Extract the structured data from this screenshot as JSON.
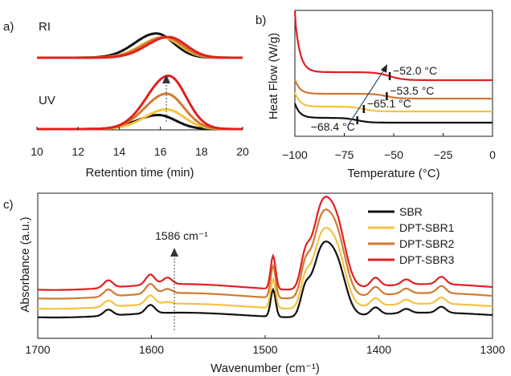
{
  "colors": {
    "SBR": "#111111",
    "DPT-SBR1": "#F5C242",
    "DPT-SBR2": "#D07A30",
    "DPT-SBR3": "#E02020",
    "axis": "#1a1a1a"
  },
  "chart_data": [
    {
      "panel_label": "a)",
      "type": "line",
      "xlabel": "Retention time (min)",
      "ylabel": "",
      "xlim": [
        10,
        20
      ],
      "xticks": [
        "10",
        "12",
        "14",
        "16",
        "18",
        "20"
      ],
      "y_axis_shown": false,
      "inline_labels": [
        "RI",
        "UV"
      ],
      "subplots": [
        {
          "label": "RI",
          "series": [
            {
              "key": "SBR",
              "peak_x": 15.8,
              "height": 0.55,
              "baseline": 0.0
            },
            {
              "key": "DPT-SBR1",
              "peak_x": 16.1,
              "height": 0.46,
              "baseline": 0.0
            },
            {
              "key": "DPT-SBR2",
              "peak_x": 16.2,
              "height": 0.47,
              "baseline": 0.0
            },
            {
              "key": "DPT-SBR3",
              "peak_x": 16.4,
              "height": 0.47,
              "baseline": 0.0
            }
          ]
        },
        {
          "label": "UV",
          "series": [
            {
              "key": "SBR",
              "peak_x": 15.9,
              "height": 0.25,
              "baseline": 0.0
            },
            {
              "key": "DPT-SBR1",
              "peak_x": 16.3,
              "height": 0.35,
              "baseline": 0.0
            },
            {
              "key": "DPT-SBR2",
              "peak_x": 16.3,
              "height": 0.63,
              "baseline": 0.0
            },
            {
              "key": "DPT-SBR3",
              "peak_x": 16.4,
              "height": 0.95,
              "baseline": 0.0
            }
          ]
        }
      ]
    },
    {
      "panel_label": "b)",
      "type": "line",
      "xlabel": "Temperature (°C)",
      "ylabel": "Heat Flow (W/g)",
      "xlim": [
        -100,
        0
      ],
      "xticks": [
        "−100",
        "−75",
        "−50",
        "−25",
        "0"
      ],
      "series": [
        {
          "key": "DPT-SBR3",
          "offset": 3,
          "tg": -52.0,
          "tg_label": "−52.0 °C"
        },
        {
          "key": "DPT-SBR2",
          "offset": 2,
          "tg": -53.5,
          "tg_label": "−53.5 °C"
        },
        {
          "key": "DPT-SBR1",
          "offset": 1,
          "tg": -65.1,
          "tg_label": "−65.1 °C"
        },
        {
          "key": "SBR",
          "offset": 0,
          "tg": -68.4,
          "tg_label": "−68.4 °C"
        }
      ]
    },
    {
      "panel_label": "c)",
      "type": "line",
      "xlabel": "Wavenumber (cm⁻¹)",
      "ylabel": "Absorbance (a.u.)",
      "xlim": [
        1700,
        1300
      ],
      "xticks": [
        "1700",
        "1600",
        "1500",
        "1400",
        "1300"
      ],
      "annotation": {
        "text": "1586 cm⁻¹",
        "x": 1586
      },
      "legend": {
        "placement": "top-right",
        "entries": [
          "SBR",
          "DPT-SBR1",
          "DPT-SBR2",
          "DPT-SBR3"
        ]
      },
      "peaks": [
        {
          "x": 1638,
          "h": 0.1
        },
        {
          "x": 1601,
          "h": 0.14
        },
        {
          "x": 1586,
          "h": 0.03
        },
        {
          "x": 1493,
          "h": 0.45
        },
        {
          "x": 1465,
          "h": 0.35
        },
        {
          "x": 1451,
          "h": 1.0
        },
        {
          "x": 1437,
          "h": 0.82
        },
        {
          "x": 1403,
          "h": 0.12
        },
        {
          "x": 1376,
          "h": 0.07
        },
        {
          "x": 1345,
          "h": 0.1
        }
      ],
      "series": [
        {
          "key": "SBR",
          "offset": 0
        },
        {
          "key": "DPT-SBR1",
          "offset": 1
        },
        {
          "key": "DPT-SBR2",
          "offset": 2
        },
        {
          "key": "DPT-SBR3",
          "offset": 3
        }
      ]
    }
  ]
}
